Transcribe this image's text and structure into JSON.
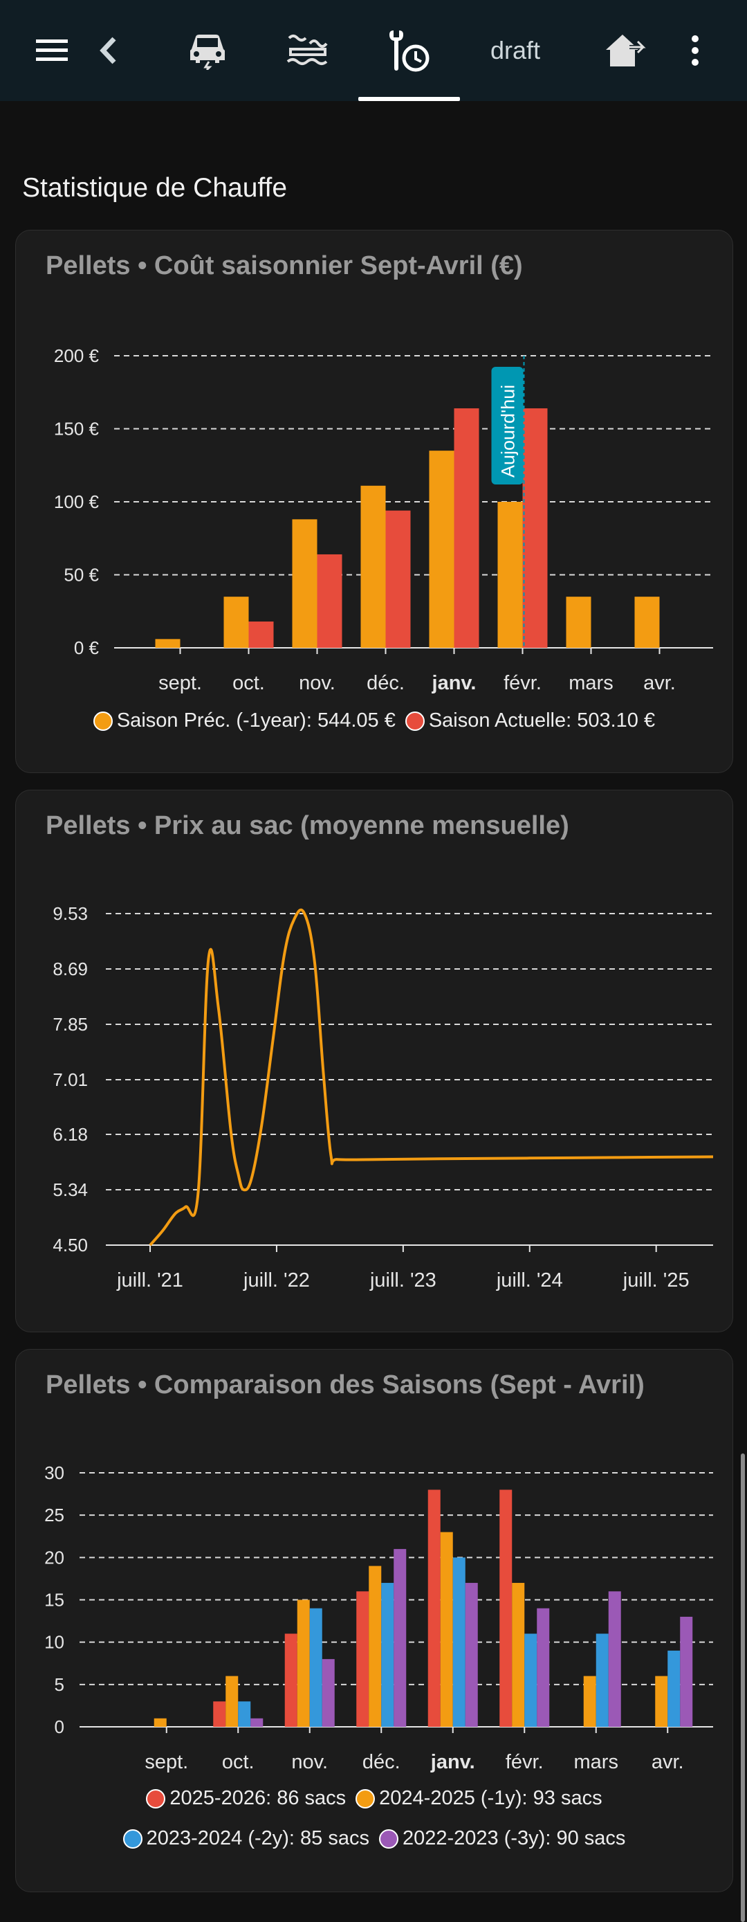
{
  "header": {
    "tabs": [
      {
        "name": "menu",
        "icon": "menu-icon"
      },
      {
        "name": "back",
        "icon": "back-arrow-icon"
      },
      {
        "name": "car",
        "icon": "car-charging-icon"
      },
      {
        "name": "heating",
        "icon": "heat-wave-icon"
      },
      {
        "name": "maintenance",
        "icon": "wrench-clock-icon"
      },
      {
        "name": "draft",
        "label": "draft"
      },
      {
        "name": "home",
        "icon": "home-export-icon"
      },
      {
        "name": "more",
        "icon": "dots-vertical-icon"
      }
    ],
    "draft_label": "draft"
  },
  "page": {
    "title": "Statistique de Chauffe"
  },
  "colors": {
    "orange": "#f39c12",
    "red": "#e74c3c",
    "blue": "#3498db",
    "purple": "#9b59b6",
    "today": "#0097b2",
    "grid": "#d9d9d9"
  },
  "chart_data": [
    {
      "type": "bar",
      "title": "Pellets • Coût saisonnier Sept-Avril (€)",
      "categories": [
        "sept.",
        "oct.",
        "nov.",
        "déc.",
        "janv.",
        "févr.",
        "mars",
        "avr."
      ],
      "highlight_category": "janv.",
      "y_ticks": [
        "0 €",
        "50 €",
        "100 €",
        "150 €",
        "200 €"
      ],
      "ylim": [
        0,
        200
      ],
      "series": [
        {
          "name": "Saison Préc. (-1year)",
          "values": [
            6,
            35,
            88,
            111,
            135,
            100,
            35,
            35
          ],
          "color": "#f39c12"
        },
        {
          "name": "Saison Actuelle",
          "values": [
            0,
            18,
            64,
            94,
            164,
            164,
            null,
            null
          ],
          "color": "#e74c3c"
        }
      ],
      "legend": [
        {
          "label": "Saison Préc. (-1year): 544.05 €",
          "color": "#f39c12"
        },
        {
          "label": "Saison Actuelle: 503.10 €",
          "color": "#e74c3c"
        }
      ],
      "annotation": {
        "label": "Aujourd'hui",
        "category": "févr."
      }
    },
    {
      "type": "line",
      "title": "Pellets • Prix au sac (moyenne mensuelle)",
      "y_ticks": [
        "4.50",
        "5.34",
        "6.18",
        "7.01",
        "7.85",
        "8.69",
        "9.53"
      ],
      "ylim": [
        4.5,
        9.53
      ],
      "x_ticks": [
        "juill. '21",
        "juill. '22",
        "juill. '23",
        "juill. '24",
        "juill. '25"
      ],
      "xlim": [
        2021.15,
        2025.95
      ],
      "series": [
        {
          "name": "Prix au sac",
          "color": "#f39c12",
          "x": [
            2021.5,
            2021.6,
            2021.7,
            2021.78,
            2021.88,
            2021.96,
            2022.04,
            2022.14,
            2022.2,
            2022.24,
            2022.3,
            2022.38,
            2022.47,
            2022.56,
            2022.64,
            2022.72,
            2022.8,
            2022.87,
            2022.93,
            2022.98,
            2023.3,
            2023.8,
            2024.5,
            2025.2,
            2025.95
          ],
          "y": [
            4.5,
            4.72,
            4.98,
            5.08,
            5.3,
            8.82,
            8.1,
            6.2,
            5.55,
            5.34,
            5.5,
            6.3,
            7.6,
            8.9,
            9.45,
            9.53,
            8.8,
            7.1,
            5.85,
            5.8,
            5.8,
            5.81,
            5.82,
            5.83,
            5.84
          ]
        }
      ]
    },
    {
      "type": "bar",
      "title": "Pellets • Comparaison des Saisons (Sept - Avril)",
      "categories": [
        "sept.",
        "oct.",
        "nov.",
        "déc.",
        "janv.",
        "févr.",
        "mars",
        "avr."
      ],
      "highlight_category": "janv.",
      "y_ticks": [
        "0",
        "5",
        "10",
        "15",
        "20",
        "25",
        "30"
      ],
      "ylim": [
        0,
        30
      ],
      "series": [
        {
          "name": "2025-2026",
          "values": [
            0,
            3,
            11,
            16,
            28,
            28,
            null,
            null
          ],
          "color": "#e74c3c"
        },
        {
          "name": "2024-2025 (-1y)",
          "values": [
            1,
            6,
            15,
            19,
            23,
            17,
            6,
            6
          ],
          "color": "#f39c12"
        },
        {
          "name": "2023-2024 (-2y)",
          "values": [
            0,
            3,
            14,
            17,
            20,
            11,
            11,
            9
          ],
          "color": "#3498db"
        },
        {
          "name": "2022-2023 (-3y)",
          "values": [
            0,
            1,
            8,
            21,
            17,
            14,
            16,
            13
          ],
          "color": "#9b59b6"
        }
      ],
      "legend": [
        {
          "label": "2025-2026: 86 sacs",
          "color": "#e74c3c"
        },
        {
          "label": "2024-2025 (-1y): 93 sacs",
          "color": "#f39c12"
        },
        {
          "label": "2023-2024 (-2y): 85 sacs",
          "color": "#3498db"
        },
        {
          "label": "2022-2023 (-3y): 90 sacs",
          "color": "#9b59b6"
        }
      ]
    }
  ]
}
